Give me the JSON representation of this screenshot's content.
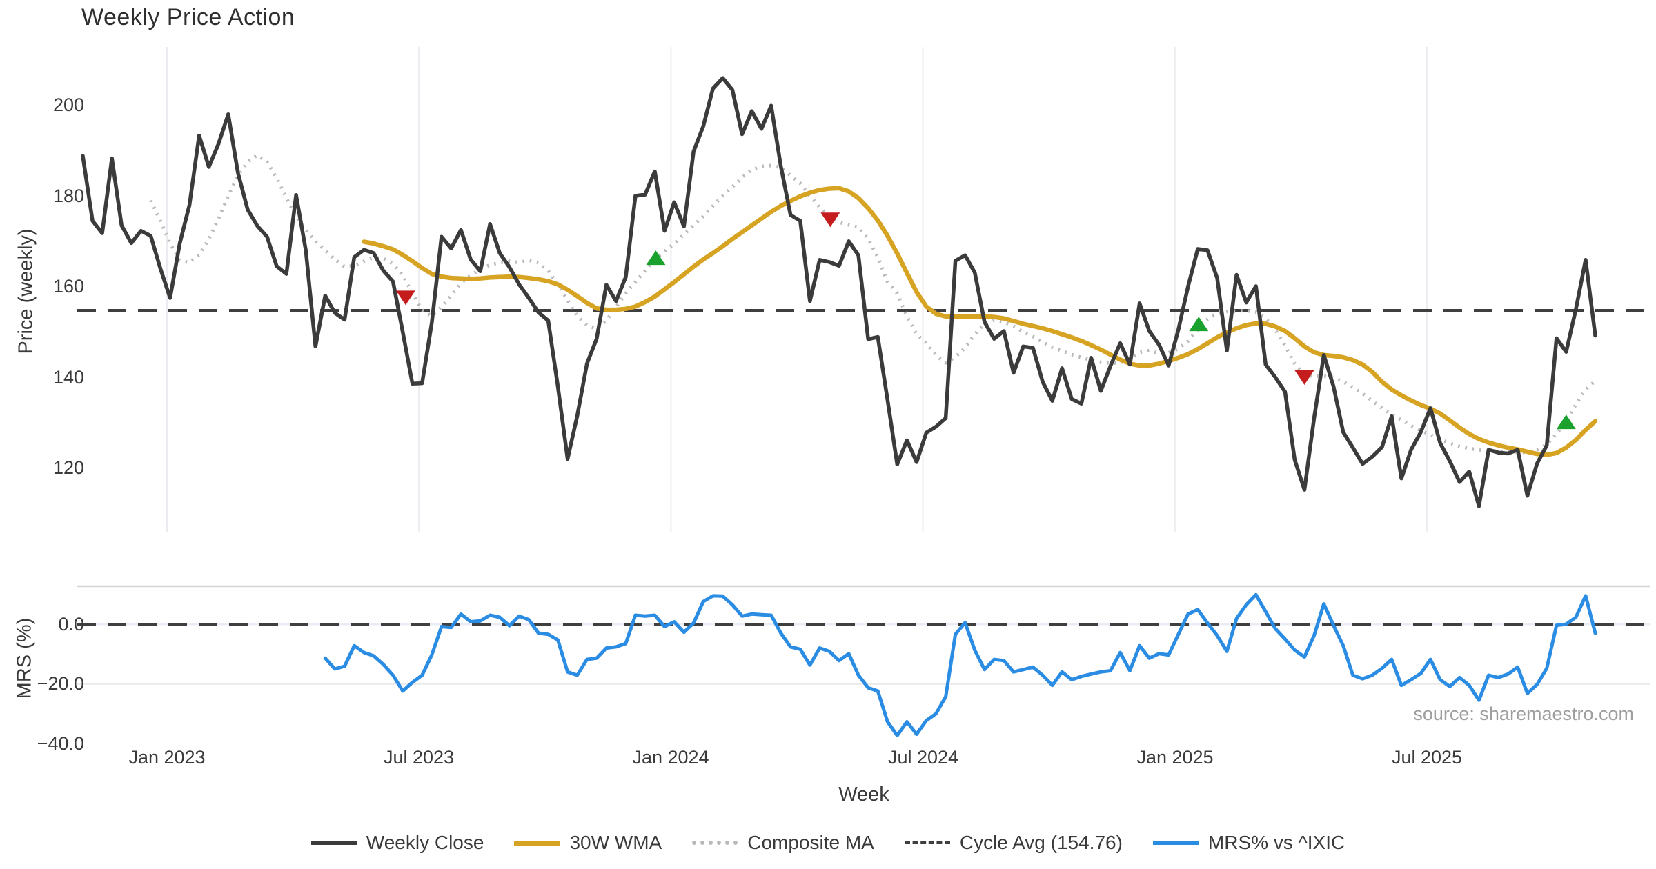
{
  "title": "Weekly Price Action",
  "source_note": "source: sharemaestro.com",
  "legend": [
    "Weekly Close",
    "30W WMA",
    "Composite MA",
    "Cycle Avg (154.76)",
    "MRS% vs ^IXIC"
  ],
  "chart_data": {
    "type": "line",
    "title": "Weekly Price Action",
    "xlabel": "Week",
    "ylabel_top": "Price (weekly)",
    "ylabel_bottom": "MRS (%)",
    "cycle_avg": 154.76,
    "grid": "vertical-only-top-panel",
    "legend_position": "bottom-center",
    "x_unit": "week_index",
    "x_ticks": [
      {
        "label": "Jan 2023",
        "week": 8.68
      },
      {
        "label": "Jul 2023",
        "week": 34.67
      },
      {
        "label": "Jan 2024",
        "week": 60.66
      },
      {
        "label": "Jul 2024",
        "week": 86.65
      },
      {
        "label": "Jan 2025",
        "week": 112.64
      },
      {
        "label": "Jul 2025",
        "week": 138.63
      }
    ],
    "y_ticks_top": [
      200,
      180,
      160,
      140,
      120
    ],
    "y_ticks_bottom": [
      "0.0",
      "−20.0",
      "−40.0"
    ],
    "y_ticks_bottom_values": [
      0,
      -20,
      -40
    ],
    "ylim_top": [
      105,
      213
    ],
    "ylim_bottom": [
      -44,
      12.6
    ],
    "series": {
      "weekly_close": {
        "name": "Weekly Close",
        "color": "#3b3b3b",
        "style": "solid",
        "panel": "top",
        "start_week": 0,
        "values": [
          188.8,
          174.5,
          171.8,
          188.3,
          173.5,
          169.6,
          172.3,
          171.2,
          164.0,
          157.5,
          169.5,
          178.0,
          193.3,
          186.4,
          191.5,
          198.0,
          185.1,
          177.0,
          173.4,
          171.0,
          164.5,
          162.8,
          180.2,
          168.0,
          146.8,
          158.0,
          154.2,
          152.7,
          166.5,
          168.1,
          167.4,
          163.5,
          161.1,
          150.0,
          138.6,
          138.7,
          152.0,
          171.0,
          168.4,
          172.5,
          166.0,
          163.4,
          173.8,
          167.4,
          164.3,
          160.5,
          157.5,
          154.3,
          152.5,
          138.0,
          122.0,
          131.5,
          143.0,
          148.5,
          160.4,
          156.8,
          162.1,
          180.0,
          180.3,
          185.4,
          172.3,
          178.6,
          173.3,
          189.8,
          195.4,
          203.7,
          206.0,
          203.4,
          193.6,
          198.7,
          194.8,
          199.9,
          186.5,
          175.8,
          174.5,
          156.8,
          165.9,
          165.4,
          164.6,
          170.0,
          166.9,
          148.4,
          148.9,
          135.0,
          120.8,
          126.1,
          121.3,
          127.8,
          129.1,
          131.0,
          165.7,
          166.9,
          163.1,
          152.2,
          148.5,
          150.2,
          141.0,
          146.8,
          146.5,
          139.0,
          134.8,
          142.0,
          135.2,
          134.2,
          144.3,
          137.0,
          142.5,
          147.5,
          142.8,
          156.3,
          150.2,
          147.2,
          142.6,
          150.5,
          160.0,
          168.3,
          168.0,
          161.9,
          145.9,
          162.6,
          156.5,
          160.1,
          142.8,
          140.0,
          136.8,
          121.8,
          115.2,
          131.0,
          144.9,
          138.0,
          127.9,
          124.5,
          120.9,
          122.5,
          124.6,
          131.4,
          117.7,
          124.0,
          127.9,
          133.2,
          125.5,
          121.5,
          116.9,
          119.2,
          111.6,
          124.0,
          123.4,
          123.2,
          124.0,
          113.9,
          121.0,
          125.0,
          148.6,
          145.6,
          155.0,
          165.9,
          149.2
        ]
      },
      "wma_30w": {
        "name": "30W WMA",
        "color": "#d7a322",
        "style": "solid",
        "panel": "top",
        "start_week": 29,
        "values": [
          169.9,
          169.5,
          168.9,
          168.2,
          167.0,
          165.6,
          164.1,
          162.8,
          162.2,
          161.9,
          161.8,
          161.7,
          161.8,
          162.0,
          162.1,
          162.2,
          162.1,
          161.9,
          161.6,
          161.2,
          160.5,
          159.3,
          157.9,
          156.4,
          155.2,
          154.9,
          154.9,
          155.1,
          155.6,
          156.6,
          157.8,
          159.4,
          161.0,
          162.7,
          164.4,
          166.0,
          167.4,
          168.9,
          170.5,
          172.0,
          173.5,
          175.0,
          176.5,
          177.8,
          178.9,
          179.9,
          180.7,
          181.3,
          181.6,
          181.7,
          181.0,
          179.5,
          177.3,
          174.6,
          171.2,
          167.3,
          163.0,
          158.8,
          155.6,
          154.0,
          153.4,
          153.4,
          153.4,
          153.4,
          153.4,
          153.3,
          153.0,
          152.4,
          151.8,
          151.3,
          150.8,
          150.2,
          149.5,
          148.8,
          148.0,
          147.1,
          146.1,
          145.0,
          143.9,
          143.0,
          142.6,
          142.6,
          143.0,
          143.6,
          144.3,
          145.1,
          146.2,
          147.5,
          148.8,
          149.9,
          150.8,
          151.5,
          151.9,
          151.8,
          151.2,
          150.2,
          148.6,
          146.8,
          145.5,
          144.9,
          144.7,
          144.4,
          143.8,
          142.8,
          141.2,
          139.0,
          137.3,
          136.0,
          134.9,
          133.9,
          133.1,
          132.0,
          130.5,
          128.9,
          127.5,
          126.4,
          125.6,
          125.0,
          124.5,
          124.1,
          123.6,
          123.1,
          122.9,
          123.3,
          124.5,
          126.2,
          128.4,
          130.3
        ]
      },
      "composite_ma": {
        "name": "Composite MA",
        "color": "#b9b9b9",
        "style": "dotted",
        "panel": "top",
        "start_week": 7,
        "values": [
          179.0,
          174.5,
          169.5,
          165.8,
          165.3,
          167.0,
          170.5,
          175.0,
          180.0,
          184.5,
          187.5,
          189.0,
          187.5,
          184.0,
          179.5,
          175.5,
          172.5,
          170.0,
          168.0,
          166.0,
          164.4,
          164.6,
          165.6,
          166.4,
          166.2,
          165.0,
          162.5,
          158.5,
          154.8,
          153.5,
          155.5,
          158.0,
          160.8,
          162.5,
          163.8,
          164.8,
          165.3,
          165.6,
          165.3,
          165.8,
          165.3,
          163.5,
          160.5,
          157.0,
          153.5,
          151.5,
          150.7,
          152.5,
          155.5,
          158.5,
          161.0,
          163.5,
          166.0,
          167.8,
          169.5,
          171.5,
          173.5,
          175.5,
          177.8,
          180.0,
          182.0,
          184.0,
          185.8,
          186.5,
          186.7,
          186.3,
          184.5,
          182.8,
          180.0,
          177.5,
          175.5,
          174.2,
          173.6,
          173.1,
          170.5,
          166.5,
          161.0,
          158.5,
          153.5,
          149.5,
          147.5,
          144.8,
          143.2,
          144.5,
          146.5,
          149.5,
          151.8,
          152.6,
          152.2,
          151.3,
          150.0,
          149.0,
          147.8,
          146.6,
          145.8,
          145.0,
          144.4,
          143.8,
          143.3,
          143.1,
          143.2,
          144.0,
          145.5,
          145.9,
          145.3,
          145.4,
          146.3,
          148.0,
          150.5,
          152.8,
          154.0,
          154.5,
          154.6,
          154.7,
          154.4,
          153.0,
          150.5,
          147.0,
          143.0,
          140.5,
          140.2,
          140.3,
          140.0,
          139.0,
          137.8,
          136.4,
          134.8,
          133.2,
          131.8,
          130.6,
          129.3,
          128.3,
          127.3,
          126.3,
          125.5,
          124.8,
          124.3,
          124.0,
          123.9,
          123.7,
          123.5,
          123.4,
          123.5,
          124.0,
          125.2,
          127.5,
          130.5,
          134.0,
          137.3,
          139.2
        ]
      },
      "mrs": {
        "name": "MRS% vs ^IXIC",
        "color": "#2a8ce2",
        "style": "solid",
        "panel": "bottom",
        "start_week": 25,
        "values": [
          -11.4,
          -15.0,
          -14.1,
          -7.2,
          -9.5,
          -10.6,
          -13.5,
          -17.1,
          -22.4,
          -19.5,
          -17.1,
          -10.3,
          -0.8,
          -1.1,
          3.4,
          0.8,
          1.1,
          3.0,
          2.3,
          -0.5,
          2.7,
          1.5,
          -3.0,
          -3.4,
          -5.3,
          -16.0,
          -17.1,
          -11.8,
          -11.4,
          -8.0,
          -7.6,
          -6.5,
          3.0,
          2.7,
          3.0,
          -0.8,
          0.8,
          -2.7,
          0.4,
          7.6,
          9.5,
          9.4,
          6.5,
          2.7,
          3.4,
          3.2,
          3.0,
          -3.0,
          -7.6,
          -8.4,
          -13.7,
          -8.0,
          -9.1,
          -12.2,
          -9.9,
          -17.1,
          -21.3,
          -22.4,
          -32.7,
          -37.3,
          -32.7,
          -36.9,
          -32.3,
          -30.0,
          -24.3,
          -3.4,
          0.5,
          -8.7,
          -15.2,
          -11.8,
          -12.2,
          -16.0,
          -15.2,
          -14.4,
          -17.1,
          -20.5,
          -16.0,
          -18.6,
          -17.5,
          -16.7,
          -16.0,
          -15.6,
          -9.5,
          -15.6,
          -7.2,
          -11.4,
          -9.9,
          -10.3,
          -3.4,
          3.4,
          4.9,
          0.4,
          -3.8,
          -9.1,
          1.9,
          6.5,
          9.9,
          4.2,
          -1.5,
          -5.0,
          -8.7,
          -11.0,
          -3.8,
          6.8,
          -0.4,
          -7.2,
          -17.1,
          -18.3,
          -17.1,
          -14.8,
          -11.8,
          -20.5,
          -18.6,
          -16.5,
          -11.8,
          -18.6,
          -20.9,
          -17.9,
          -20.5,
          -25.5,
          -17.1,
          -17.9,
          -16.7,
          -14.4,
          -23.2,
          -20.2,
          -14.8,
          -0.4,
          0.0,
          2.3,
          9.5,
          -3.0
        ]
      }
    },
    "markers": {
      "buy": {
        "shape": "triangle-up",
        "color": "#1ba22e",
        "points": [
          {
            "week": 59.1,
            "price": 166.3
          },
          {
            "week": 115.1,
            "price": 151.7
          },
          {
            "week": 153.0,
            "price": 130.1
          }
        ]
      },
      "sell": {
        "shape": "triangle-down",
        "color": "#c51d1d",
        "points": [
          {
            "week": 33.3,
            "price": 157.6
          },
          {
            "week": 77.1,
            "price": 174.8
          },
          {
            "week": 126.0,
            "price": 140.0
          }
        ]
      }
    }
  }
}
